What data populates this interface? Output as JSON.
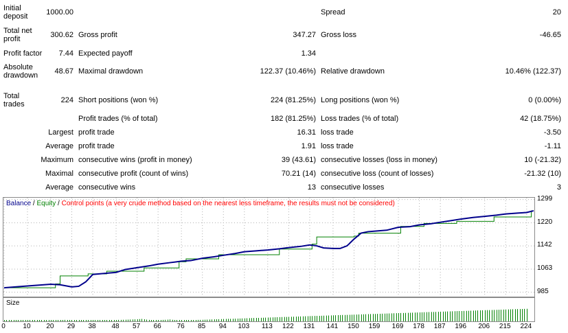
{
  "stats": {
    "initial_deposit_label": "Initial deposit",
    "initial_deposit": "1000.00",
    "spread_label": "Spread",
    "spread": "20",
    "total_net_profit_label": "Total net profit",
    "total_net_profit": "300.62",
    "gross_profit_label": "Gross profit",
    "gross_profit": "347.27",
    "gross_loss_label": "Gross loss",
    "gross_loss": "-46.65",
    "profit_factor_label": "Profit factor",
    "profit_factor": "7.44",
    "expected_payoff_label": "Expected payoff",
    "expected_payoff": "1.34",
    "absolute_drawdown_label": "Absolute drawdown",
    "absolute_drawdown": "48.67",
    "maximal_drawdown_label": "Maximal drawdown",
    "maximal_drawdown": "122.37 (10.46%)",
    "relative_drawdown_label": "Relative drawdown",
    "relative_drawdown": "10.46% (122.37)",
    "total_trades_label": "Total trades",
    "total_trades": "224",
    "short_positions_label": "Short positions (won %)",
    "short_positions": "224 (81.25%)",
    "long_positions_label": "Long positions (won %)",
    "long_positions": "0 (0.00%)",
    "profit_trades_label": "Profit trades (% of total)",
    "profit_trades": "182 (81.25%)",
    "loss_trades_label": "Loss trades (% of total)",
    "loss_trades": "42 (18.75%)",
    "largest_label": "Largest",
    "largest_profit_label": "profit trade",
    "largest_profit": "16.31",
    "largest_loss_label": "loss trade",
    "largest_loss": "-3.50",
    "average_label": "Average",
    "average_profit_label": "profit trade",
    "average_profit": "1.91",
    "average_loss_label": "loss trade",
    "average_loss": "-1.11",
    "maximum_label": "Maximum",
    "max_consec_wins_label": "consecutive wins (profit in money)",
    "max_consec_wins": "39 (43.61)",
    "max_consec_losses_label": "consecutive losses (loss in money)",
    "max_consec_losses": "10 (-21.32)",
    "maximal_label": "Maximal",
    "maximal_consec_profit_label": "consecutive profit (count of wins)",
    "maximal_consec_profit": "70.21 (14)",
    "maximal_consec_loss_label": "consecutive loss (count of losses)",
    "maximal_consec_loss": "-21.32 (10)",
    "average2_label": "Average",
    "avg_consec_wins_label": "consecutive wins",
    "avg_consec_wins": "13",
    "avg_consec_losses_label": "consecutive losses",
    "avg_consec_losses": "3"
  },
  "legend": {
    "balance": "Balance",
    "sep1": " / ",
    "equity": "Equity",
    "sep2": " / ",
    "control": "Control points (a very crude method based on the nearest less timeframe, the results must not be considered)"
  },
  "size_label": "Size",
  "colors": {
    "balance": "#00008b",
    "equity": "#008000",
    "control": "#ff0000",
    "size_bars": "#008000"
  },
  "chart_data": {
    "type": "line",
    "ylim": [
      970,
      1305
    ],
    "yticks": [
      "1299",
      "1220",
      "1142",
      "1063",
      "985"
    ],
    "ytick_values": [
      1299,
      1220,
      1142,
      1063,
      985
    ],
    "xticks": [
      "0",
      "10",
      "20",
      "29",
      "38",
      "48",
      "57",
      "66",
      "76",
      "85",
      "94",
      "103",
      "113",
      "122",
      "131",
      "141",
      "150",
      "159",
      "169",
      "178",
      "187",
      "196",
      "206",
      "215",
      "224"
    ],
    "xlim": [
      0,
      227
    ],
    "series": [
      {
        "name": "Balance",
        "x": [
          0,
          10,
          20,
          24,
          29,
          32,
          35,
          38,
          42,
          48,
          52,
          57,
          62,
          66,
          71,
          76,
          80,
          85,
          90,
          94,
          99,
          103,
          108,
          113,
          118,
          122,
          127,
          131,
          134,
          137,
          141,
          144,
          147,
          150,
          153,
          156,
          159,
          164,
          169,
          174,
          178,
          183,
          187,
          192,
          196,
          201,
          206,
          211,
          215,
          220,
          224,
          227
        ],
        "y": [
          1000,
          1006,
          1012,
          1010,
          1003,
          1005,
          1020,
          1045,
          1048,
          1052,
          1062,
          1068,
          1074,
          1080,
          1085,
          1090,
          1092,
          1100,
          1105,
          1110,
          1116,
          1122,
          1125,
          1128,
          1132,
          1136,
          1140,
          1145,
          1142,
          1135,
          1133,
          1133,
          1142,
          1165,
          1185,
          1190,
          1192,
          1195,
          1205,
          1207,
          1213,
          1217,
          1222,
          1228,
          1233,
          1238,
          1242,
          1246,
          1250,
          1253,
          1255,
          1261
        ]
      },
      {
        "name": "Equity",
        "x": [
          0,
          22,
          24,
          36,
          44,
          60,
          75,
          78,
          92,
          118,
          132,
          134,
          150,
          152,
          170,
          180,
          194,
          210,
          226
        ],
        "y": [
          1000,
          1013,
          1040,
          1047,
          1056,
          1067,
          1088,
          1098,
          1112,
          1131,
          1148,
          1172,
          1175,
          1185,
          1208,
          1218,
          1225,
          1240,
          1262
        ]
      }
    ],
    "size_bars": [
      6,
      7,
      8,
      9,
      8,
      8,
      7,
      8,
      9,
      8,
      7,
      6,
      8,
      7,
      8,
      8,
      7,
      10,
      11,
      12,
      8,
      7,
      9,
      10,
      14,
      16,
      18,
      17,
      9,
      8,
      7,
      8,
      9,
      10,
      11,
      12,
      13,
      12,
      11,
      10,
      9,
      10,
      11,
      12,
      13,
      14,
      15,
      16,
      17,
      18,
      19,
      20,
      21,
      22,
      23,
      24,
      25,
      26,
      28,
      30,
      26,
      22,
      18,
      14,
      10,
      12,
      14,
      16,
      18,
      20,
      22,
      24,
      20,
      16,
      12,
      10,
      11,
      12,
      13,
      14,
      15,
      16,
      17,
      18,
      19,
      20,
      21,
      22,
      23,
      24,
      25,
      26,
      27,
      28,
      29,
      30,
      31,
      32,
      33,
      34,
      35,
      36,
      37,
      38,
      39,
      40,
      41,
      42,
      43,
      44,
      45,
      46,
      47,
      48,
      49,
      50,
      51,
      52,
      53,
      54,
      55,
      56,
      57,
      58,
      59,
      60,
      61,
      62,
      63,
      64,
      65,
      66,
      67,
      68,
      69,
      70,
      71,
      72,
      73,
      74,
      75,
      76,
      77,
      78,
      79,
      80,
      81,
      82,
      83,
      84,
      85,
      86,
      87,
      88,
      89,
      90,
      91,
      92,
      93,
      94,
      95,
      96,
      97,
      98,
      99,
      100,
      101,
      102,
      103,
      104,
      105,
      106,
      107,
      108,
      109,
      110,
      111,
      112,
      113,
      114,
      115,
      116,
      117,
      118,
      119,
      120,
      121,
      122,
      123,
      124,
      125,
      126,
      127,
      128,
      129,
      130,
      131,
      132,
      133,
      134,
      135,
      136,
      137,
      138,
      139,
      140,
      141,
      142,
      143,
      144,
      145,
      146,
      147,
      148,
      149,
      150,
      151,
      152,
      153,
      154,
      155,
      156,
      157,
      158,
      159,
      160,
      161,
      162,
      163,
      164,
      165,
      166,
      167,
      168,
      169,
      170,
      171,
      172,
      173,
      174
    ]
  }
}
